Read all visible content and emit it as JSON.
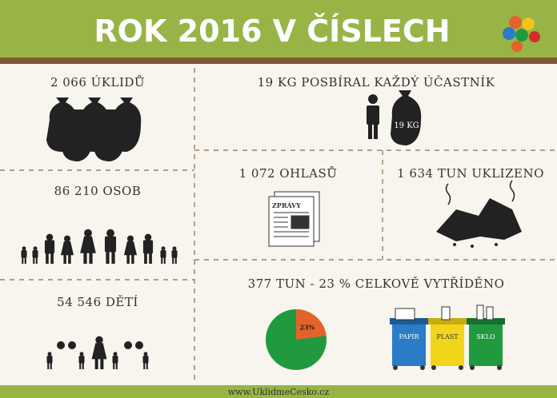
{
  "header": {
    "title": "ROK 2016 V ČÍSLECH"
  },
  "cells": [
    {
      "text": "2 066 ÚKLIDŮ"
    },
    {
      "text": "86 210 OSOB"
    },
    {
      "text": "54 546 DĚTÍ"
    },
    {
      "text": "19 KG POSBÍRAL KAŽDÝ ÚČASTNÍK",
      "bag_label": "19 KG"
    },
    {
      "text": "1 072 OHLASŮ",
      "paper_label": "ZPRÁVY"
    },
    {
      "text": "1 634 TUN UKLIZENO"
    },
    {
      "text": "377 TUN - 23 % CELKOVĚ VYTŘÍDĚNO",
      "bins": [
        "PAPÍR",
        "PLAST",
        "SKLO"
      ]
    }
  ],
  "pie": {
    "type": "pie",
    "value": 23,
    "label": "23%",
    "color": "#e4632b",
    "rest_color": "#1f9a3f"
  },
  "footer": {
    "text": "www.UklidmeCesko.cz"
  }
}
